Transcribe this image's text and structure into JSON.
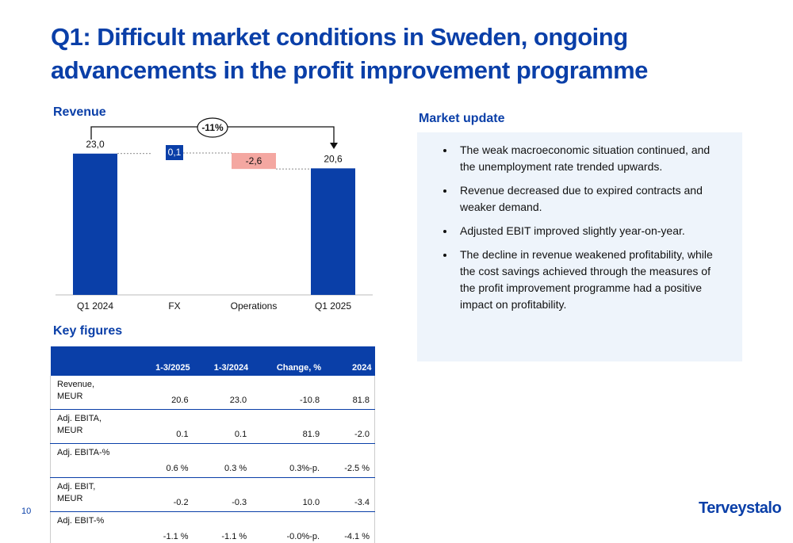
{
  "title": "Q1: Difficult market conditions in Sweden, ongoing advancements in the profit improvement programme",
  "chart_data": {
    "type": "waterfall",
    "title": "Revenue",
    "categories": [
      "Q1 2024",
      "FX",
      "Operations",
      "Q1 2025"
    ],
    "values": [
      23.0,
      0.1,
      -2.6,
      20.6
    ],
    "value_labels": [
      "23,0",
      "0,1",
      "-2,6",
      "20,6"
    ],
    "color": "#0a3fa8",
    "negative_color": "#f4a7a1",
    "annotation": "-11%"
  },
  "market_update": {
    "title": "Market update",
    "bullets": [
      "The weak macroeconomic situation continued, and the unemployment rate trended upwards.",
      "Revenue decreased due to expired contracts and weaker demand.",
      "Adjusted EBIT improved slightly year-on-year.",
      "The decline in revenue weakened profitability, while the cost savings achieved through the measures of the profit improvement programme had a positive impact on profitability."
    ]
  },
  "key_figures": {
    "title": "Key figures",
    "header": [
      "1-3/2025",
      "1-3/2024",
      "Change, %",
      "2024"
    ],
    "rows": [
      [
        "Revenue,\nMEUR",
        "20.6",
        "23.0",
        "-10.8",
        "81.8"
      ],
      [
        "Adj. EBITA,\nMEUR",
        "0.1",
        "0.1",
        "81.9",
        "-2.0"
      ],
      [
        "Adj. EBITA-%",
        "0.6 %",
        "0.3 %",
        "0.3%-p.",
        "-2.5 %"
      ],
      [
        "Adj. EBIT,\nMEUR",
        "-0.2",
        "-0.3",
        "10.0",
        "-3.4"
      ],
      [
        "Adj. EBIT-%",
        "-1.1 %",
        "-1.1 %",
        "-0.0%-p.",
        "-4.1 %"
      ]
    ]
  },
  "page_number": "10",
  "logo": "Terveystalo"
}
